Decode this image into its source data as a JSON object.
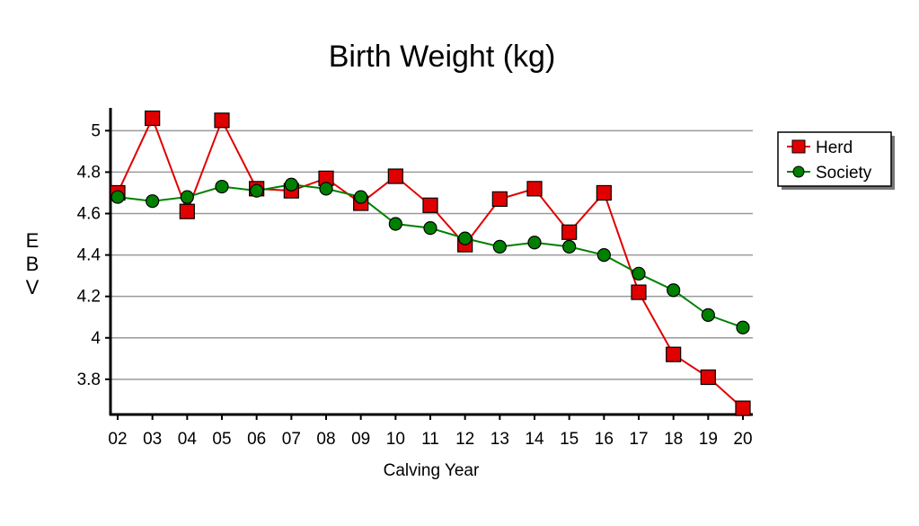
{
  "chart_data": {
    "type": "line",
    "title": "Birth Weight (kg)",
    "xlabel": "Calving Year",
    "ylabel": "EBV",
    "categories": [
      "02",
      "03",
      "04",
      "05",
      "06",
      "07",
      "08",
      "09",
      "10",
      "11",
      "12",
      "13",
      "14",
      "15",
      "16",
      "17",
      "18",
      "19",
      "20"
    ],
    "yticks": [
      3.8,
      4,
      4.2,
      4.4,
      4.6,
      4.8,
      5
    ],
    "ylim": [
      3.63,
      5.11
    ],
    "grid": true,
    "legend_position": "top-right",
    "series": [
      {
        "name": "Herd",
        "color": "#e00000",
        "marker": "square",
        "values": [
          4.7,
          5.06,
          4.61,
          5.05,
          4.72,
          4.71,
          4.77,
          4.65,
          4.78,
          4.64,
          4.45,
          4.67,
          4.72,
          4.51,
          4.7,
          4.22,
          3.92,
          3.81,
          3.66
        ]
      },
      {
        "name": "Society",
        "color": "#008000",
        "marker": "circle",
        "values": [
          4.68,
          4.66,
          4.68,
          4.73,
          4.71,
          4.74,
          4.72,
          4.68,
          4.55,
          4.53,
          4.48,
          4.44,
          4.46,
          4.44,
          4.4,
          4.31,
          4.23,
          4.11,
          4.05
        ]
      }
    ]
  }
}
